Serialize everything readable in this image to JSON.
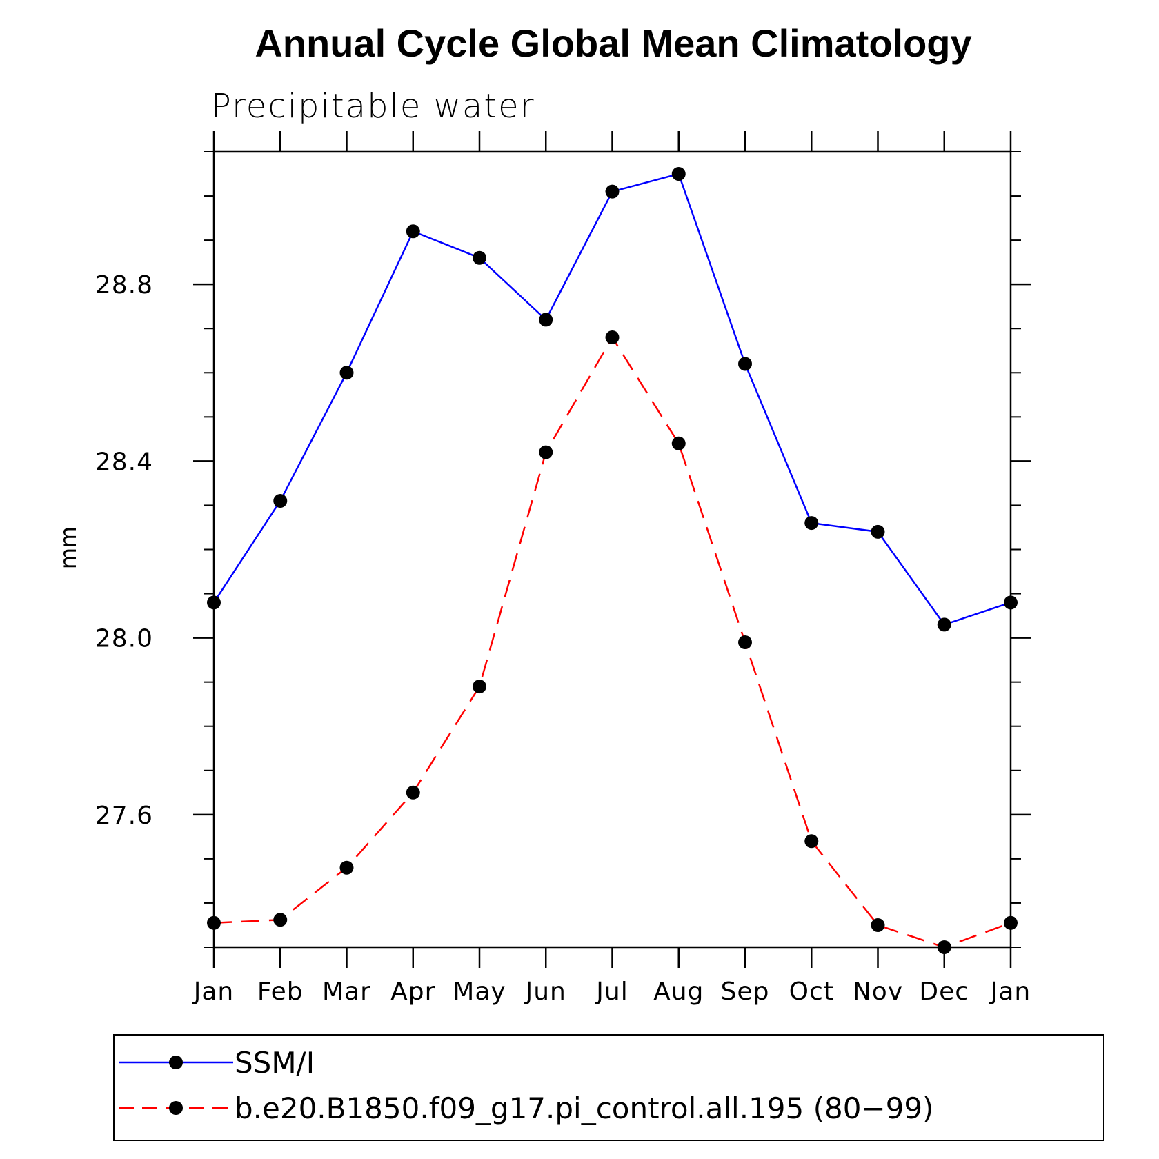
{
  "chart_data": {
    "type": "line",
    "title": "Annual Cycle Global Mean Climatology",
    "subtitle": "Precipitable water",
    "xlabel": "",
    "ylabel": "mm",
    "categories": [
      "Jan",
      "Feb",
      "Mar",
      "Apr",
      "May",
      "Jun",
      "Jul",
      "Aug",
      "Sep",
      "Oct",
      "Nov",
      "Dec",
      "Jan"
    ],
    "ylim": [
      27.3,
      29.1
    ],
    "yticks": [
      "27.6",
      "28.0",
      "28.4",
      "28.8"
    ],
    "grid": false,
    "legend_position": "bottom",
    "series": [
      {
        "name": "SSM/I",
        "color": "#0000ff",
        "linestyle": "solid",
        "marker": "filled-circle",
        "values": [
          28.08,
          28.31,
          28.6,
          28.92,
          28.86,
          28.72,
          29.01,
          29.05,
          28.62,
          28.26,
          28.24,
          28.03,
          28.08
        ]
      },
      {
        "name": "b.e20.B1850.f09_g17.pi_control.all.195 (80−99)",
        "color": "#ff0000",
        "linestyle": "dashed",
        "marker": "filled-circle",
        "values": [
          27.355,
          27.362,
          27.48,
          27.65,
          27.89,
          28.42,
          28.68,
          28.44,
          27.99,
          27.54,
          27.35,
          27.3,
          27.355
        ]
      }
    ]
  }
}
